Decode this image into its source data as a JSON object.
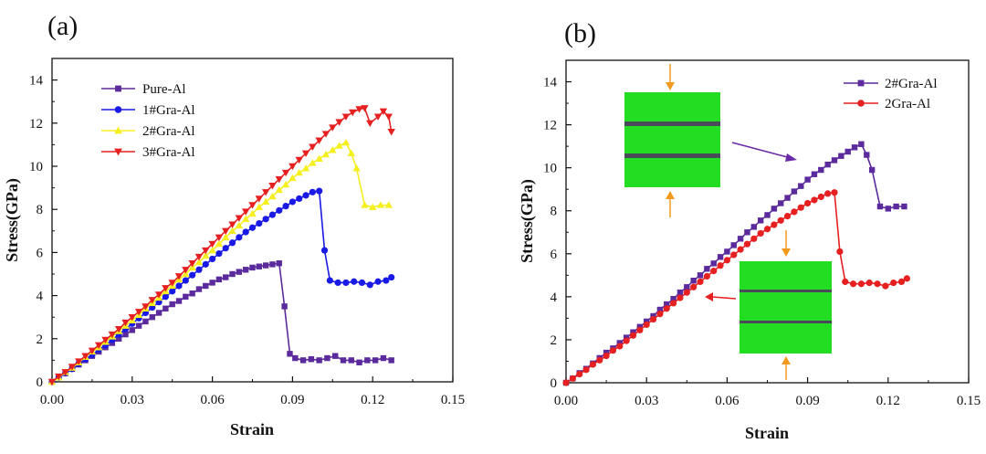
{
  "chart_data": [
    {
      "panel_label": "(a)",
      "type": "line",
      "xlabel": "Strain",
      "ylabel": "Stress(GPa)",
      "xlim": [
        0,
        0.15
      ],
      "ylim": [
        0,
        15
      ],
      "xticks": [
        "0.00",
        "0.03",
        "0.06",
        "0.09",
        "0.12",
        "0.15"
      ],
      "yticks": [
        "0",
        "2",
        "4",
        "6",
        "8",
        "10",
        "12",
        "14"
      ],
      "legend_position": "top-left",
      "series": [
        {
          "name": "Pure-Al",
          "color": "#5b2a9c",
          "marker": "square",
          "x": [
            0,
            0.0025,
            0.005,
            0.0075,
            0.01,
            0.0125,
            0.015,
            0.0175,
            0.02,
            0.0225,
            0.025,
            0.0275,
            0.03,
            0.0325,
            0.035,
            0.0375,
            0.04,
            0.0425,
            0.045,
            0.0475,
            0.05,
            0.0525,
            0.055,
            0.0575,
            0.06,
            0.0625,
            0.065,
            0.0675,
            0.07,
            0.0725,
            0.075,
            0.0775,
            0.08,
            0.0825,
            0.085,
            0.087,
            0.089,
            0.091,
            0.094,
            0.097,
            0.1,
            0.103,
            0.106,
            0.109,
            0.112,
            0.115,
            0.118,
            0.121,
            0.124,
            0.127
          ],
          "y": [
            0,
            0.2,
            0.4,
            0.6,
            0.8,
            1.0,
            1.2,
            1.4,
            1.6,
            1.8,
            2.0,
            2.2,
            2.4,
            2.6,
            2.8,
            3.0,
            3.2,
            3.4,
            3.6,
            3.75,
            3.95,
            4.1,
            4.3,
            4.45,
            4.6,
            4.75,
            4.85,
            5.0,
            5.1,
            5.2,
            5.3,
            5.35,
            5.4,
            5.45,
            5.5,
            3.5,
            1.3,
            1.1,
            1.0,
            1.05,
            1.0,
            1.1,
            1.2,
            1.0,
            1.0,
            0.9,
            1.0,
            1.0,
            1.1,
            1.0
          ]
        },
        {
          "name": "1#Gra-Al",
          "color": "#1a1ae6",
          "marker": "circle",
          "x": [
            0,
            0.0025,
            0.005,
            0.0075,
            0.01,
            0.0125,
            0.015,
            0.0175,
            0.02,
            0.0225,
            0.025,
            0.0275,
            0.03,
            0.0325,
            0.035,
            0.0375,
            0.04,
            0.0425,
            0.045,
            0.0475,
            0.05,
            0.0525,
            0.055,
            0.0575,
            0.06,
            0.0625,
            0.065,
            0.0675,
            0.07,
            0.0725,
            0.075,
            0.0775,
            0.08,
            0.0825,
            0.085,
            0.0875,
            0.09,
            0.0925,
            0.095,
            0.0975,
            0.1,
            0.102,
            0.104,
            0.107,
            0.11,
            0.113,
            0.116,
            0.119,
            0.122,
            0.125,
            0.127
          ],
          "y": [
            0,
            0.2,
            0.4,
            0.6,
            0.85,
            1.05,
            1.25,
            1.5,
            1.7,
            1.95,
            2.2,
            2.45,
            2.7,
            2.95,
            3.2,
            3.45,
            3.7,
            3.95,
            4.2,
            4.45,
            4.7,
            4.95,
            5.2,
            5.45,
            5.7,
            5.95,
            6.2,
            6.45,
            6.7,
            6.95,
            7.15,
            7.35,
            7.55,
            7.75,
            7.95,
            8.15,
            8.35,
            8.5,
            8.65,
            8.8,
            8.85,
            6.1,
            4.7,
            4.6,
            4.6,
            4.65,
            4.6,
            4.5,
            4.65,
            4.7,
            4.85
          ]
        },
        {
          "name": "2#Gra-Al",
          "color": "#f5ef1e",
          "marker": "triangle-up",
          "x": [
            0,
            0.0025,
            0.005,
            0.0075,
            0.01,
            0.0125,
            0.015,
            0.0175,
            0.02,
            0.0225,
            0.025,
            0.0275,
            0.03,
            0.0325,
            0.035,
            0.0375,
            0.04,
            0.0425,
            0.045,
            0.0475,
            0.05,
            0.0525,
            0.055,
            0.0575,
            0.06,
            0.0625,
            0.065,
            0.0675,
            0.07,
            0.0725,
            0.075,
            0.0775,
            0.08,
            0.0825,
            0.085,
            0.0875,
            0.09,
            0.0925,
            0.095,
            0.0975,
            0.1,
            0.1025,
            0.105,
            0.1075,
            0.11,
            0.112,
            0.114,
            0.117,
            0.12,
            0.123,
            0.126
          ],
          "y": [
            0,
            0.2,
            0.45,
            0.65,
            0.9,
            1.15,
            1.4,
            1.6,
            1.85,
            2.1,
            2.35,
            2.6,
            2.85,
            3.1,
            3.4,
            3.65,
            3.9,
            4.2,
            4.45,
            4.75,
            5.0,
            5.3,
            5.55,
            5.85,
            6.1,
            6.4,
            6.7,
            7.0,
            7.25,
            7.55,
            7.8,
            8.1,
            8.35,
            8.6,
            8.9,
            9.15,
            9.45,
            9.7,
            9.9,
            10.15,
            10.35,
            10.55,
            10.75,
            10.95,
            11.1,
            10.6,
            9.9,
            8.2,
            8.1,
            8.2,
            8.2
          ]
        },
        {
          "name": "3#Gra-Al",
          "color": "#e62020",
          "marker": "triangle-down",
          "x": [
            0,
            0.0025,
            0.005,
            0.0075,
            0.01,
            0.0125,
            0.015,
            0.0175,
            0.02,
            0.0225,
            0.025,
            0.0275,
            0.03,
            0.0325,
            0.035,
            0.0375,
            0.04,
            0.0425,
            0.045,
            0.0475,
            0.05,
            0.0525,
            0.055,
            0.0575,
            0.06,
            0.0625,
            0.065,
            0.0675,
            0.07,
            0.0725,
            0.075,
            0.0775,
            0.08,
            0.0825,
            0.085,
            0.0875,
            0.09,
            0.0925,
            0.095,
            0.0975,
            0.1,
            0.1025,
            0.105,
            0.1075,
            0.11,
            0.1125,
            0.115,
            0.117,
            0.119,
            0.122,
            0.124,
            0.126,
            0.127
          ],
          "y": [
            0,
            0.25,
            0.45,
            0.7,
            0.95,
            1.2,
            1.45,
            1.7,
            1.95,
            2.2,
            2.45,
            2.75,
            3.0,
            3.25,
            3.5,
            3.8,
            4.05,
            4.35,
            4.6,
            4.9,
            5.2,
            5.5,
            5.8,
            6.1,
            6.4,
            6.7,
            7.0,
            7.3,
            7.6,
            7.9,
            8.2,
            8.5,
            8.8,
            9.1,
            9.4,
            9.7,
            10.0,
            10.3,
            10.6,
            10.9,
            11.2,
            11.5,
            11.8,
            12.05,
            12.3,
            12.5,
            12.65,
            12.7,
            12.0,
            12.3,
            12.55,
            12.3,
            11.6
          ]
        }
      ]
    },
    {
      "panel_label": "(b)",
      "type": "line",
      "xlabel": "Strain",
      "ylabel": "Stress(GPa)",
      "xlim": [
        0,
        0.15
      ],
      "ylim": [
        0,
        15
      ],
      "xticks": [
        "0.00",
        "0.03",
        "0.06",
        "0.09",
        "0.12",
        "0.15"
      ],
      "yticks": [
        "0",
        "2",
        "4",
        "6",
        "8",
        "10",
        "12",
        "14"
      ],
      "legend_position": "top-right",
      "insets": [
        "model with two graphene layers (2#Gra-Al), arrow to purple curve",
        "model with two graphene layers (2Gra-Al), arrow to red curve"
      ],
      "series": [
        {
          "name": "2#Gra-Al",
          "color": "#5b2a9c",
          "marker": "square",
          "x": [
            0,
            0.0025,
            0.005,
            0.0075,
            0.01,
            0.0125,
            0.015,
            0.0175,
            0.02,
            0.0225,
            0.025,
            0.0275,
            0.03,
            0.0325,
            0.035,
            0.0375,
            0.04,
            0.0425,
            0.045,
            0.0475,
            0.05,
            0.0525,
            0.055,
            0.0575,
            0.06,
            0.0625,
            0.065,
            0.0675,
            0.07,
            0.0725,
            0.075,
            0.0775,
            0.08,
            0.0825,
            0.085,
            0.0875,
            0.09,
            0.0925,
            0.095,
            0.0975,
            0.1,
            0.1025,
            0.105,
            0.1075,
            0.11,
            0.112,
            0.114,
            0.117,
            0.12,
            0.123,
            0.126
          ],
          "y": [
            0,
            0.2,
            0.45,
            0.65,
            0.9,
            1.15,
            1.4,
            1.6,
            1.85,
            2.1,
            2.35,
            2.6,
            2.85,
            3.1,
            3.4,
            3.65,
            3.9,
            4.2,
            4.45,
            4.75,
            5.0,
            5.3,
            5.55,
            5.85,
            6.1,
            6.4,
            6.7,
            7.0,
            7.25,
            7.55,
            7.8,
            8.1,
            8.35,
            8.6,
            8.9,
            9.15,
            9.45,
            9.7,
            9.9,
            10.15,
            10.35,
            10.55,
            10.75,
            10.95,
            11.1,
            10.6,
            9.9,
            8.2,
            8.1,
            8.2,
            8.2
          ]
        },
        {
          "name": "2Gra-Al",
          "color": "#e62020",
          "marker": "circle",
          "x": [
            0,
            0.0025,
            0.005,
            0.0075,
            0.01,
            0.0125,
            0.015,
            0.0175,
            0.02,
            0.0225,
            0.025,
            0.0275,
            0.03,
            0.0325,
            0.035,
            0.0375,
            0.04,
            0.0425,
            0.045,
            0.0475,
            0.05,
            0.0525,
            0.055,
            0.0575,
            0.06,
            0.0625,
            0.065,
            0.0675,
            0.07,
            0.0725,
            0.075,
            0.0775,
            0.08,
            0.0825,
            0.085,
            0.0875,
            0.09,
            0.0925,
            0.095,
            0.0975,
            0.1,
            0.102,
            0.104,
            0.107,
            0.11,
            0.113,
            0.116,
            0.119,
            0.122,
            0.125,
            0.127
          ],
          "y": [
            0,
            0.2,
            0.4,
            0.6,
            0.85,
            1.05,
            1.25,
            1.5,
            1.7,
            1.95,
            2.2,
            2.45,
            2.7,
            2.95,
            3.2,
            3.45,
            3.7,
            3.95,
            4.2,
            4.45,
            4.7,
            4.95,
            5.2,
            5.45,
            5.7,
            5.95,
            6.2,
            6.45,
            6.7,
            6.95,
            7.15,
            7.35,
            7.55,
            7.75,
            7.95,
            8.15,
            8.35,
            8.5,
            8.65,
            8.8,
            8.85,
            6.1,
            4.7,
            4.6,
            4.6,
            4.65,
            4.6,
            4.5,
            4.65,
            4.7,
            4.85
          ]
        }
      ]
    }
  ]
}
